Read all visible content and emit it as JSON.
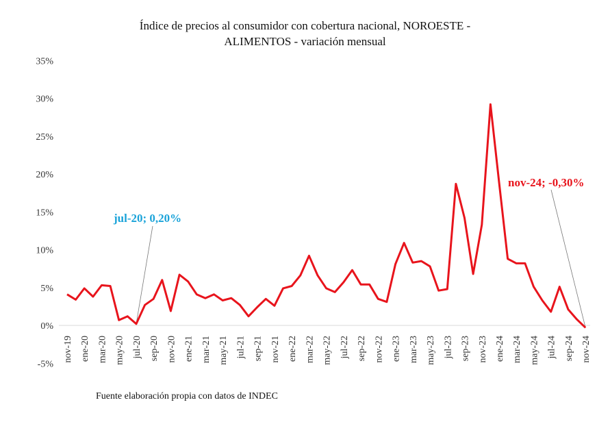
{
  "chart_data": {
    "type": "line",
    "title_line1": "Índice de precios al consumidor con cobertura nacional, NOROESTE -",
    "title_line2": "ALIMENTOS - variación mensual",
    "xlabel": "",
    "ylabel": "",
    "ylim": [
      -5,
      35
    ],
    "yticks": [
      "-5%",
      "0%",
      "5%",
      "10%",
      "15%",
      "20%",
      "25%",
      "30%",
      "35%"
    ],
    "ytick_values": [
      -5,
      0,
      5,
      10,
      15,
      20,
      25,
      30,
      35
    ],
    "grid": false,
    "categories": [
      "nov-19",
      "dic-19",
      "ene-20",
      "feb-20",
      "mar-20",
      "abr-20",
      "may-20",
      "jun-20",
      "jul-20",
      "ago-20",
      "sep-20",
      "oct-20",
      "nov-20",
      "dic-20",
      "ene-21",
      "feb-21",
      "mar-21",
      "abr-21",
      "may-21",
      "jun-21",
      "jul-21",
      "ago-21",
      "sep-21",
      "oct-21",
      "nov-21",
      "dic-21",
      "ene-22",
      "feb-22",
      "mar-22",
      "abr-22",
      "may-22",
      "jun-22",
      "jul-22",
      "ago-22",
      "sep-22",
      "oct-22",
      "nov-22",
      "dic-22",
      "ene-23",
      "feb-23",
      "mar-23",
      "abr-23",
      "may-23",
      "jun-23",
      "jul-23",
      "ago-23",
      "sep-23",
      "oct-23",
      "nov-23",
      "dic-23",
      "ene-24",
      "feb-24",
      "mar-24",
      "abr-24",
      "may-24",
      "jun-24",
      "jul-24",
      "ago-24",
      "sep-24",
      "oct-24",
      "nov-24"
    ],
    "xtick_labels": [
      "nov-19",
      "ene-20",
      "mar-20",
      "may-20",
      "jul-20",
      "sep-20",
      "nov-20",
      "ene-21",
      "mar-21",
      "may-21",
      "jul-21",
      "sep-21",
      "nov-21",
      "ene-22",
      "mar-22",
      "may-22",
      "jul-22",
      "sep-22",
      "nov-22",
      "ene-23",
      "mar-23",
      "may-23",
      "jul-23",
      "sep-23",
      "nov-23",
      "ene-24",
      "mar-24",
      "may-24",
      "jul-24",
      "sep-24",
      "nov-24"
    ],
    "series": [
      {
        "name": "Variación mensual",
        "color": "#e8141c",
        "values": [
          4.1,
          3.4,
          4.9,
          3.8,
          5.3,
          5.2,
          0.7,
          1.2,
          0.2,
          2.7,
          3.5,
          6.0,
          1.9,
          6.7,
          5.8,
          4.1,
          3.6,
          4.1,
          3.3,
          3.6,
          2.7,
          1.2,
          2.4,
          3.5,
          2.6,
          4.9,
          5.2,
          6.6,
          9.2,
          6.6,
          4.9,
          4.4,
          5.7,
          7.3,
          5.4,
          5.4,
          3.5,
          3.1,
          8.1,
          10.9,
          8.3,
          8.5,
          7.8,
          4.6,
          4.8,
          18.7,
          14.2,
          6.8,
          13.3,
          29.2,
          18.9,
          8.8,
          8.2,
          8.2,
          5.1,
          3.3,
          1.8,
          5.1,
          2.1,
          0.8,
          -0.3
        ]
      }
    ],
    "annotations": [
      {
        "text": "jul-20; 0,20%",
        "category": "jul-20",
        "value": 0.2,
        "color": "#1aa3d9"
      },
      {
        "text": "nov-24; -0,30%",
        "category": "nov-24",
        "value": -0.3,
        "color": "#e8141c"
      }
    ],
    "source": "Fuente elaboración propia con datos de INDEC"
  }
}
